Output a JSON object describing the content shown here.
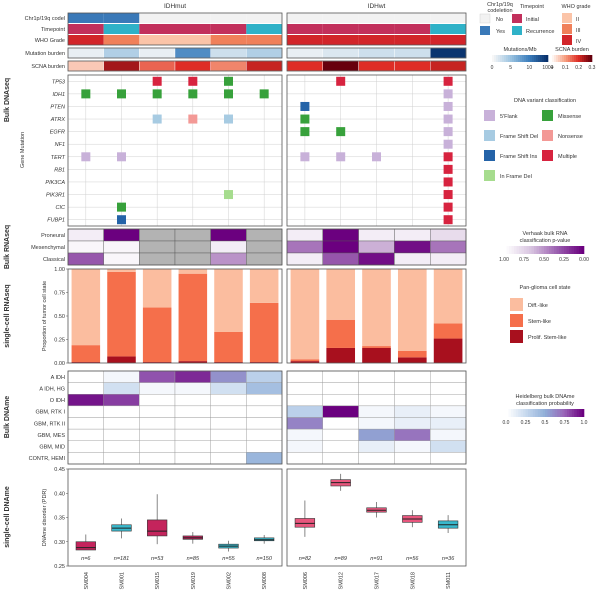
{
  "colors": {
    "codeletion_no": "#f2f2f2",
    "codeletion_yes": "#3a79b8",
    "timepoint_initial": "#c2305c",
    "timepoint_recurrence": "#2fb2c8",
    "grade_II": "#fbc4a8",
    "grade_III": "#f0805a",
    "grade_IV": "#d2252a",
    "variant_5flank": "#c8b1d9",
    "variant_missense": "#37a13b",
    "variant_fsdel": "#a7cbe2",
    "variant_nonsense": "#f39996",
    "variant_fsins": "#2463a8",
    "variant_multiple": "#d7233f",
    "variant_inframedel": "#a6dc8e",
    "cell_diff": "#fbbd9f",
    "cell_stem": "#f56f4b",
    "cell_prolif": "#a8101e",
    "box_idhmut": "#c4245c",
    "box_idhwt": "#e8567d",
    "box_teal": "#3ab8cc",
    "pval_low": "#6b007f",
    "pval_high": "#ffffff",
    "prob_high": "#6b007f",
    "na_gray": "#b3b3b3",
    "grid": "#d0d0d0"
  },
  "groups": [
    "IDHmut",
    "IDHwt"
  ],
  "samples": [
    "SM004",
    "SM001",
    "SM015",
    "SM019",
    "SM002",
    "SM008",
    "SM006",
    "SM012",
    "SM017",
    "SM018",
    "SM011"
  ],
  "sample_counts": [
    "n=6",
    "n=181",
    "n=53",
    "n=85",
    "n=55",
    "n=150",
    "n=82",
    "n=89",
    "n=91",
    "n=56",
    "n=36"
  ],
  "row_labels": {
    "clinical": [
      "Chr1p/19q codel",
      "Timepoint",
      "WHO Grade"
    ],
    "burden": [
      "Mutation burden",
      "SCNA burden"
    ],
    "genes": [
      "TP53",
      "IDH1",
      "PTEN",
      "ATRX",
      "EGFR",
      "NF1",
      "TERT",
      "RB1",
      "PIK3CA",
      "PIK3R1",
      "CIC",
      "FUBP1"
    ],
    "rnaseq": [
      "Proneural",
      "Mesenchymal",
      "Classical"
    ],
    "dname": [
      "A IDH",
      "A IDH, HG",
      "O IDH",
      "GBM, RTK I",
      "GBM, RTK II",
      "GBM, MES",
      "GBM, MID",
      "CONTR, HEMI"
    ]
  },
  "section_labels": {
    "bulk_dnaseq": "Bulk DNAseq",
    "bulk_rnaseq": "Bulk RNAseq",
    "sc_rnaseq": "single-cell RNAseq",
    "bulk_dname": "Bulk DNAme",
    "sc_dname": "single-cell DNAme",
    "gene_mutation": "Gene Mutation",
    "prop_axis": "Proportion of tumor cell state",
    "dname_axis": "DNAme disorder (PDR)"
  },
  "legends": {
    "codel_title": "Chr1p/19q codeletion",
    "codel_items": [
      "No",
      "Yes"
    ],
    "timepoint_title": "Timepoint",
    "timepoint_items": [
      "Initial",
      "Recurrence"
    ],
    "grade_title": "WHO grade",
    "grade_items": [
      "II",
      "III",
      "IV"
    ],
    "mut_title": "Mutations/Mb",
    "mut_ticks": [
      "0",
      "5",
      "10",
      "100+"
    ],
    "scna_title": "SCNA burden",
    "scna_ticks": [
      "0",
      "0.1",
      "0.2",
      "0.3"
    ],
    "variant_title": "DNA variant classification",
    "variant_items": [
      "5'Flank",
      "Missense",
      "Frame Shift Del",
      "Nonsense",
      "Frame Shift Ins",
      "Multiple",
      "In Frame Del"
    ],
    "rna_title": "Verhaak bulk RNA classification p-value",
    "rna_ticks": [
      "1.00",
      "0.75",
      "0.50",
      "0.25",
      "0.00"
    ],
    "cell_title": "Pan-glioma cell state",
    "cell_items": [
      "Diff.-like",
      "Stem-like",
      "Prolif. Stem-like"
    ],
    "heid_title": "Heidelberg bulk DNAme classification probability",
    "heid_ticks": [
      "0.0",
      "0.25",
      "0.5",
      "0.75",
      "1.0"
    ]
  },
  "clinical_data": {
    "codeletion": [
      "yes",
      "yes",
      "no",
      "no",
      "no",
      "no",
      "no",
      "no",
      "no",
      "no",
      "no"
    ],
    "timepoint": [
      "initial",
      "recurrence",
      "initial",
      "initial",
      "initial",
      "recurrence",
      "initial",
      "initial",
      "initial",
      "initial",
      "recurrence"
    ],
    "grade": [
      "IV",
      "III",
      "II",
      "II",
      "III",
      "III",
      "IV",
      "IV",
      "IV",
      "IV",
      "IV"
    ],
    "mutation_burden": [
      0.05,
      0.25,
      0.05,
      0.6,
      0.15,
      0.25,
      0.05,
      0.1,
      0.15,
      0.15,
      0.98
    ],
    "scna_burden": [
      0.05,
      0.25,
      0.15,
      0.2,
      0.12,
      0.22,
      0.2,
      0.3,
      0.2,
      0.2,
      0.22
    ]
  },
  "mutations": [
    {
      "gene": "TP53",
      "sample": 2,
      "type": "multiple"
    },
    {
      "gene": "TP53",
      "sample": 3,
      "type": "multiple"
    },
    {
      "gene": "TP53",
      "sample": 4,
      "type": "missense"
    },
    {
      "gene": "TP53",
      "sample": 7,
      "type": "multiple"
    },
    {
      "gene": "TP53",
      "sample": 10,
      "type": "multiple"
    },
    {
      "gene": "IDH1",
      "sample": 0,
      "type": "missense"
    },
    {
      "gene": "IDH1",
      "sample": 1,
      "type": "missense"
    },
    {
      "gene": "IDH1",
      "sample": 2,
      "type": "missense"
    },
    {
      "gene": "IDH1",
      "sample": 3,
      "type": "missense"
    },
    {
      "gene": "IDH1",
      "sample": 4,
      "type": "missense"
    },
    {
      "gene": "IDH1",
      "sample": 5,
      "type": "missense"
    },
    {
      "gene": "IDH1",
      "sample": 10,
      "type": "5flank"
    },
    {
      "gene": "PTEN",
      "sample": 6,
      "type": "fsins"
    },
    {
      "gene": "PTEN",
      "sample": 10,
      "type": "5flank"
    },
    {
      "gene": "ATRX",
      "sample": 2,
      "type": "fsdel"
    },
    {
      "gene": "ATRX",
      "sample": 3,
      "type": "nonsense"
    },
    {
      "gene": "ATRX",
      "sample": 4,
      "type": "fsdel"
    },
    {
      "gene": "ATRX",
      "sample": 6,
      "type": "missense"
    },
    {
      "gene": "ATRX",
      "sample": 10,
      "type": "5flank"
    },
    {
      "gene": "EGFR",
      "sample": 6,
      "type": "missense"
    },
    {
      "gene": "EGFR",
      "sample": 7,
      "type": "missense"
    },
    {
      "gene": "EGFR",
      "sample": 10,
      "type": "5flank"
    },
    {
      "gene": "NF1",
      "sample": 10,
      "type": "5flank"
    },
    {
      "gene": "TERT",
      "sample": 0,
      "type": "5flank"
    },
    {
      "gene": "TERT",
      "sample": 1,
      "type": "5flank"
    },
    {
      "gene": "TERT",
      "sample": 6,
      "type": "5flank"
    },
    {
      "gene": "TERT",
      "sample": 7,
      "type": "5flank"
    },
    {
      "gene": "TERT",
      "sample": 8,
      "type": "5flank"
    },
    {
      "gene": "TERT",
      "sample": 10,
      "type": "multiple"
    },
    {
      "gene": "RB1",
      "sample": 10,
      "type": "multiple"
    },
    {
      "gene": "PIK3CA",
      "sample": 10,
      "type": "multiple"
    },
    {
      "gene": "PIK3R1",
      "sample": 4,
      "type": "inframedel"
    },
    {
      "gene": "PIK3R1",
      "sample": 10,
      "type": "multiple"
    },
    {
      "gene": "CIC",
      "sample": 1,
      "type": "missense"
    },
    {
      "gene": "CIC",
      "sample": 10,
      "type": "multiple"
    },
    {
      "gene": "FUBP1",
      "sample": 1,
      "type": "fsins"
    },
    {
      "gene": "FUBP1",
      "sample": 10,
      "type": "multiple"
    }
  ],
  "rnaseq_pvalues": {
    "Proneural": [
      0.9,
      0.0,
      null,
      null,
      0.0,
      null,
      0.9,
      0.0,
      0.9,
      0.9,
      0.8
    ],
    "Mesenchymal": [
      0.95,
      0.95,
      null,
      null,
      0.9,
      null,
      0.4,
      0.0,
      0.6,
      0.05,
      0.4
    ],
    "Classical": [
      0.3,
      0.95,
      null,
      null,
      0.5,
      null,
      0.9,
      0.3,
      0.05,
      0.9,
      0.9
    ]
  },
  "dname_probs": {
    "A IDH": [
      0.0,
      0.05,
      0.8,
      0.9,
      0.6,
      0.3,
      0.0,
      0.0,
      0.0,
      0.0,
      0.0
    ],
    "A IDH, HG": [
      0.0,
      0.2,
      0.05,
      0.05,
      0.2,
      0.4,
      0.0,
      0.0,
      0.0,
      0.0,
      0.0
    ],
    "O IDH": [
      0.95,
      0.85,
      0.0,
      0.0,
      0.0,
      0.0,
      0.0,
      0.0,
      0.0,
      0.0,
      0.0
    ],
    "GBM, RTK I": [
      0.0,
      0.0,
      0.0,
      0.0,
      0.0,
      0.0,
      0.3,
      1.0,
      0.05,
      0.1,
      0.05
    ],
    "GBM, RTK II": [
      0.0,
      0.0,
      0.0,
      0.0,
      0.0,
      0.0,
      0.65,
      0.0,
      0.05,
      0.1,
      0.1
    ],
    "GBM, MES": [
      0.0,
      0.0,
      0.0,
      0.0,
      0.0,
      0.0,
      0.05,
      0.0,
      0.55,
      0.7,
      0.05
    ],
    "GBM, MID": [
      0.0,
      0.0,
      0.0,
      0.0,
      0.0,
      0.0,
      0.05,
      0.0,
      0.1,
      0.05,
      0.2
    ],
    "CONTR, HEMI": [
      0.0,
      0.0,
      0.0,
      0.0,
      0.0,
      0.45,
      0.0,
      0.0,
      0.0,
      0.0,
      0.0
    ]
  },
  "chart_data": [
    {
      "type": "bar",
      "stacked": true,
      "categories": [
        "SM004",
        "SM001",
        "SM015",
        "SM019",
        "SM002",
        "SM008",
        "SM006",
        "SM012",
        "SM017",
        "SM018",
        "SM011"
      ],
      "series": [
        {
          "name": "Prolif. Stem-like",
          "values": [
            0.01,
            0.07,
            0.01,
            0.02,
            0.01,
            0.01,
            0.02,
            0.16,
            0.16,
            0.06,
            0.26
          ]
        },
        {
          "name": "Stem-like",
          "values": [
            0.18,
            0.9,
            0.58,
            0.93,
            0.32,
            0.63,
            0.02,
            0.3,
            0.02,
            0.07,
            0.16
          ]
        },
        {
          "name": "Diff.-like",
          "values": [
            0.81,
            0.03,
            0.41,
            0.05,
            0.67,
            0.36,
            0.96,
            0.54,
            0.82,
            0.87,
            0.58
          ]
        }
      ],
      "ylabel": "Proportion of tumor cell state",
      "ylim": [
        0,
        1
      ],
      "yticks": [
        "0.00",
        "0.25",
        "0.50",
        "0.75",
        "1.00"
      ],
      "legend": "right"
    },
    {
      "type": "box",
      "categories": [
        "SM004",
        "SM001",
        "SM015",
        "SM019",
        "SM002",
        "SM008",
        "SM006",
        "SM012",
        "SM017",
        "SM018",
        "SM011"
      ],
      "boxes": [
        {
          "q1": 0.283,
          "med": 0.288,
          "q3": 0.3,
          "min": 0.283,
          "max": 0.315
        },
        {
          "q1": 0.322,
          "med": 0.328,
          "q3": 0.335,
          "min": 0.307,
          "max": 0.348
        },
        {
          "q1": 0.312,
          "med": 0.322,
          "q3": 0.345,
          "min": 0.295,
          "max": 0.398
        },
        {
          "q1": 0.305,
          "med": 0.308,
          "q3": 0.312,
          "min": 0.296,
          "max": 0.32
        },
        {
          "q1": 0.287,
          "med": 0.291,
          "q3": 0.295,
          "min": 0.28,
          "max": 0.302
        },
        {
          "q1": 0.302,
          "med": 0.304,
          "q3": 0.308,
          "min": 0.296,
          "max": 0.314
        },
        {
          "q1": 0.33,
          "med": 0.338,
          "q3": 0.348,
          "min": 0.31,
          "max": 0.385
        },
        {
          "q1": 0.415,
          "med": 0.422,
          "q3": 0.428,
          "min": 0.405,
          "max": 0.44
        },
        {
          "q1": 0.361,
          "med": 0.365,
          "q3": 0.37,
          "min": 0.35,
          "max": 0.382
        },
        {
          "q1": 0.34,
          "med": 0.347,
          "q3": 0.354,
          "min": 0.33,
          "max": 0.365
        },
        {
          "q1": 0.328,
          "med": 0.335,
          "q3": 0.343,
          "min": 0.318,
          "max": 0.355
        }
      ],
      "box_colors": [
        "box_idhmut",
        "box_teal",
        "box_idhmut",
        "box_idhmut",
        "box_teal",
        "box_teal",
        "box_idhwt",
        "box_idhwt",
        "box_idhwt",
        "box_idhwt",
        "box_teal"
      ],
      "ylabel": "DNAme disorder (PDR)",
      "ylim": [
        0.25,
        0.45
      ],
      "yticks": [
        "0.25",
        "0.30",
        "0.35",
        "0.40",
        "0.45"
      ]
    }
  ]
}
